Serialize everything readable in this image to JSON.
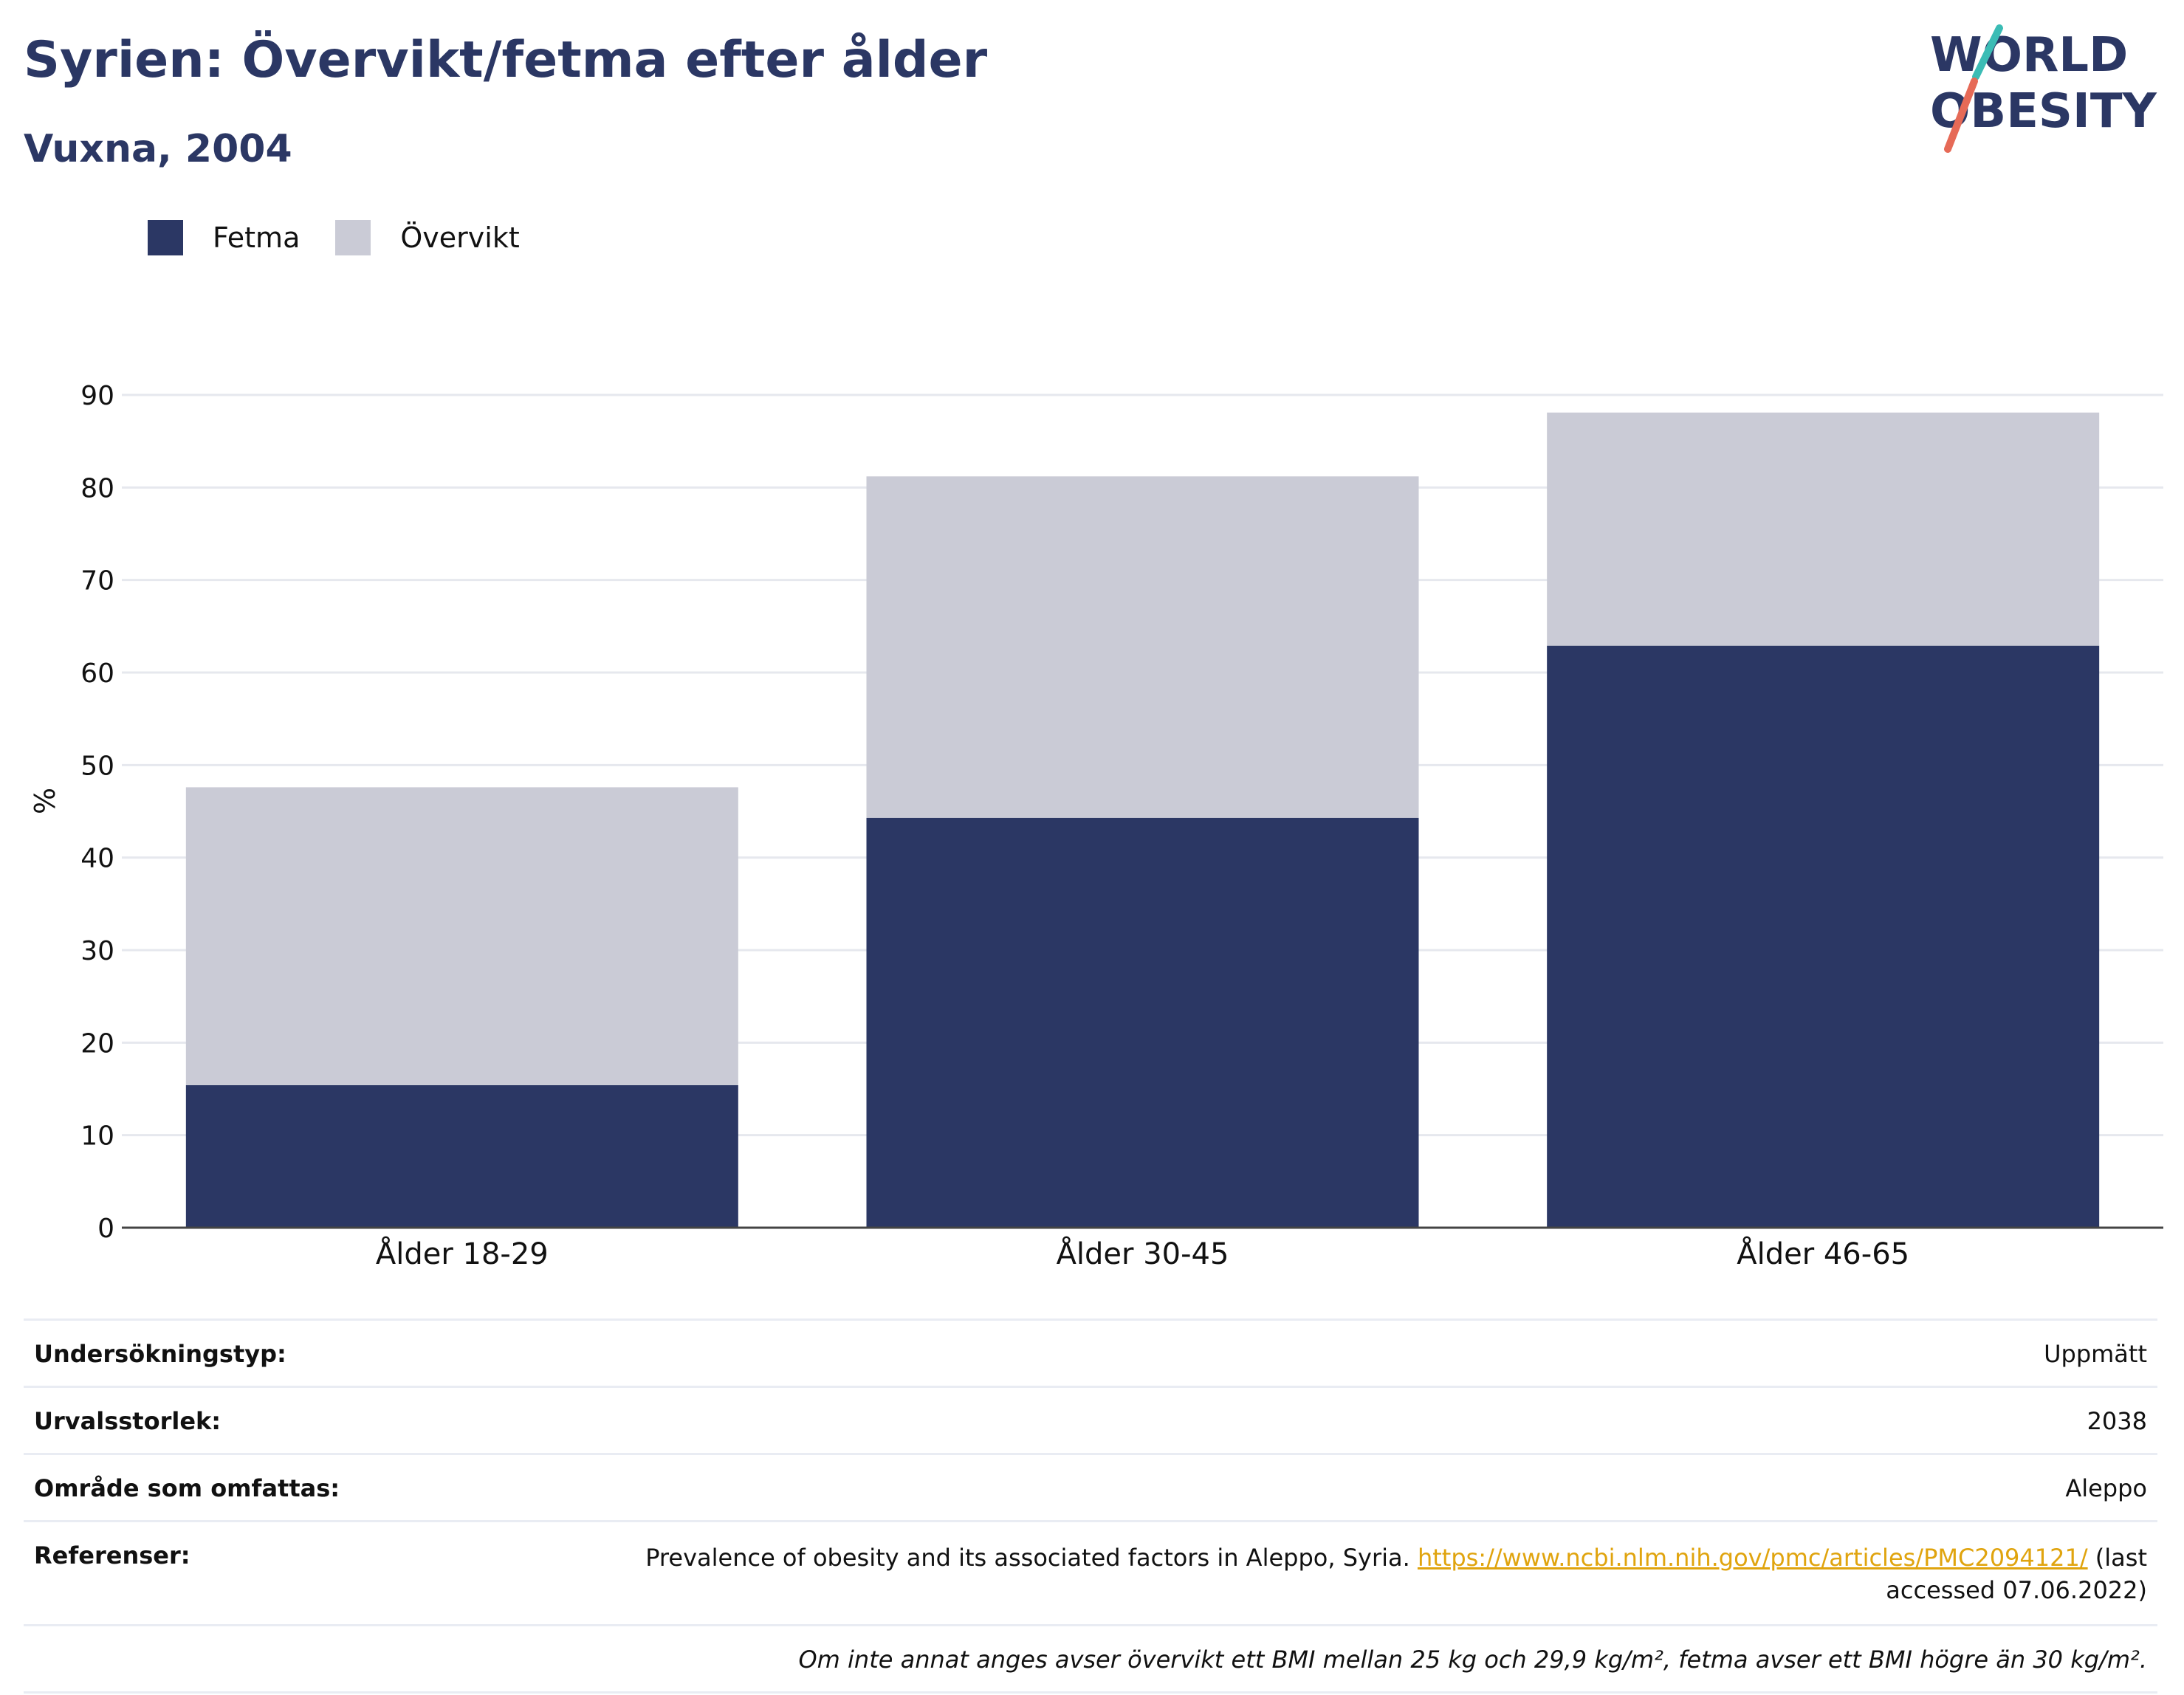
{
  "header": {
    "title": "Syrien: Övervikt/fetma efter ålder",
    "subtitle": "Vuxna, 2004",
    "logo_line1": "WORLD",
    "logo_line2": "OBESITY"
  },
  "colors": {
    "fetma": "#2b3764",
    "overvikt": "#cacbd6",
    "title": "#2b3764",
    "link": "#e0a40e",
    "logo_teal": "#3bbcb5",
    "logo_coral": "#e66a57"
  },
  "legend": [
    {
      "label": "Fetma",
      "color": "#2b3764"
    },
    {
      "label": "Övervikt",
      "color": "#cacbd6"
    }
  ],
  "chart_data": {
    "type": "bar",
    "stacked": true,
    "categories": [
      "Ålder 18-29",
      "Ålder 30-45",
      "Ålder 46-65"
    ],
    "series": [
      {
        "name": "Fetma",
        "values": [
          15.4,
          44.3,
          62.9
        ],
        "color": "#2b3764"
      },
      {
        "name": "Övervikt",
        "values": [
          32.2,
          36.9,
          25.2
        ],
        "color": "#cacbd6"
      }
    ],
    "totals": [
      47.6,
      81.2,
      88.1
    ],
    "ylabel": "%",
    "xlabel": "",
    "ylim": [
      0,
      90
    ],
    "yticks": [
      0,
      10,
      20,
      30,
      40,
      50,
      60,
      70,
      80,
      90
    ],
    "grid": true,
    "legend_position": "top-left"
  },
  "info": {
    "survey_label": "Undersökningstyp:",
    "survey_value": "Uppmätt",
    "sample_label": "Urvalsstorlek:",
    "sample_value": "2038",
    "area_label": "Område som omfattas:",
    "area_value": "Aleppo",
    "ref_label": "Referenser:",
    "ref_text": "Prevalence of obesity and its associated factors in Aleppo, Syria.",
    "ref_link": "https://www.ncbi.nlm.nih.gov/pmc/articles/PMC2094121/",
    "ref_suffix": "(last accessed 07.06.2022)",
    "footnote": "Om inte annat anges avser övervikt ett BMI mellan 25 kg och 29,9 kg/m², fetma avser ett BMI högre än 30 kg/m²."
  }
}
